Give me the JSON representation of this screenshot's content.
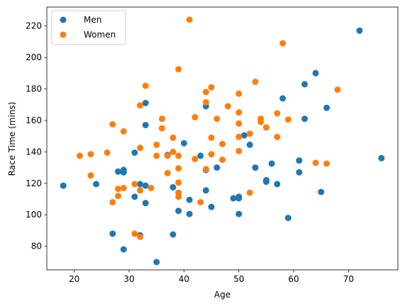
{
  "chart_data": {
    "type": "scatter",
    "xlabel": "Age",
    "ylabel": "Race Time (mins)",
    "xlim": [
      15,
      79
    ],
    "ylim": [
      65,
      232
    ],
    "xticks": [
      20,
      30,
      40,
      50,
      60,
      70
    ],
    "yticks": [
      80,
      100,
      120,
      140,
      160,
      180,
      200,
      220
    ],
    "legend": {
      "placement": "top-left"
    },
    "grid": false,
    "series": [
      {
        "name": "Men",
        "color": "#1f77b4",
        "points": [
          [
            18,
            118.5
          ],
          [
            24,
            119.5
          ],
          [
            27,
            88
          ],
          [
            28,
            127.5
          ],
          [
            29,
            127
          ],
          [
            29,
            128.5
          ],
          [
            29,
            78
          ],
          [
            31,
            111.5
          ],
          [
            31,
            139.5
          ],
          [
            32,
            119.5
          ],
          [
            32,
            87
          ],
          [
            33,
            118.5
          ],
          [
            33,
            107.5
          ],
          [
            33,
            157
          ],
          [
            33,
            171
          ],
          [
            35,
            70
          ],
          [
            37,
            138
          ],
          [
            38,
            117.5
          ],
          [
            38,
            87.5
          ],
          [
            39,
            102.5
          ],
          [
            40,
            145.5
          ],
          [
            41,
            109.5
          ],
          [
            41,
            100.5
          ],
          [
            43,
            137.5
          ],
          [
            44,
            169
          ],
          [
            44,
            115.5
          ],
          [
            44,
            128.5
          ],
          [
            45,
            105
          ],
          [
            46,
            130
          ],
          [
            49,
            110.5
          ],
          [
            50,
            110.5
          ],
          [
            50,
            111.5
          ],
          [
            50,
            100.5
          ],
          [
            51,
            150.5
          ],
          [
            52,
            144.5
          ],
          [
            53,
            130
          ],
          [
            55,
            121
          ],
          [
            55,
            122
          ],
          [
            56,
            132.5
          ],
          [
            57,
            119.5
          ],
          [
            58,
            174
          ],
          [
            59,
            98
          ],
          [
            61,
            127
          ],
          [
            61,
            134.5
          ],
          [
            62,
            161
          ],
          [
            62,
            183
          ],
          [
            64,
            190
          ],
          [
            65,
            114.5
          ],
          [
            66,
            168
          ],
          [
            72,
            217
          ],
          [
            76,
            136
          ]
        ]
      },
      {
        "name": "Women",
        "color": "#ff7f0e",
        "points": [
          [
            21,
            137.5
          ],
          [
            23,
            138.5
          ],
          [
            23,
            125
          ],
          [
            26,
            139.5
          ],
          [
            27,
            157.5
          ],
          [
            27,
            108
          ],
          [
            28,
            116.5
          ],
          [
            28,
            112
          ],
          [
            29,
            117
          ],
          [
            29,
            153
          ],
          [
            31,
            119.5
          ],
          [
            31,
            88
          ],
          [
            32,
            115.5
          ],
          [
            32,
            142.5
          ],
          [
            32,
            169.5
          ],
          [
            32,
            86
          ],
          [
            33,
            182
          ],
          [
            34,
            117
          ],
          [
            35,
            144.5
          ],
          [
            35,
            137.5
          ],
          [
            36,
            161
          ],
          [
            36,
            155
          ],
          [
            37,
            126.5
          ],
          [
            37,
            137.5
          ],
          [
            38,
            149
          ],
          [
            38,
            140
          ],
          [
            39,
            192.5
          ],
          [
            39,
            137.5
          ],
          [
            39,
            129.5
          ],
          [
            39,
            120.5
          ],
          [
            39,
            114
          ],
          [
            39,
            111.5
          ],
          [
            41,
            224
          ],
          [
            42,
            135.5
          ],
          [
            42,
            162
          ],
          [
            43,
            108
          ],
          [
            44,
            178
          ],
          [
            44,
            171.5
          ],
          [
            44,
            129
          ],
          [
            45,
            181
          ],
          [
            45,
            149
          ],
          [
            45,
            138.5
          ],
          [
            46,
            161
          ],
          [
            47,
            135
          ],
          [
            47,
            145
          ],
          [
            48,
            169
          ],
          [
            50,
            177
          ],
          [
            50,
            165
          ],
          [
            50,
            158
          ],
          [
            50,
            149.5
          ],
          [
            50,
            140.5
          ],
          [
            52,
            151.5
          ],
          [
            52,
            114
          ],
          [
            53,
            184.5
          ],
          [
            54,
            161
          ],
          [
            54,
            159
          ],
          [
            55,
            155.5
          ],
          [
            57,
            164.5
          ],
          [
            57,
            149.5
          ],
          [
            58,
            209
          ],
          [
            59,
            160.5
          ],
          [
            64,
            133
          ],
          [
            66,
            132.5
          ],
          [
            68,
            179.5
          ]
        ]
      }
    ]
  }
}
